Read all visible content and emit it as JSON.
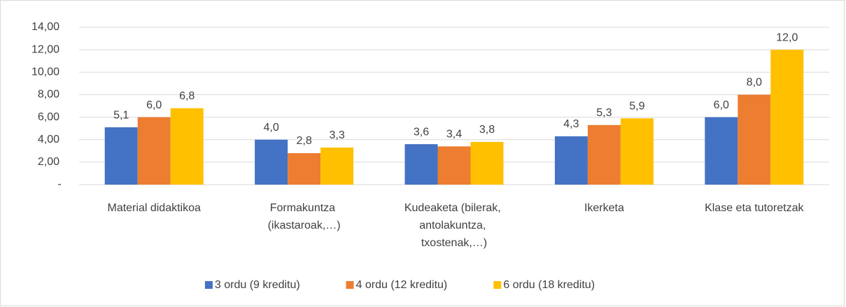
{
  "chart_data": {
    "type": "bar",
    "categories": [
      "Material didaktikoa",
      "Formakuntza (ikastaroak,…)",
      "Kudeaketa (bilerak, antolakuntza, txostenak,…)",
      "Ikerketa",
      "Klase eta tutoretzak"
    ],
    "series": [
      {
        "name": "3 ordu (9 kreditu)",
        "color": "#4472c4",
        "values": [
          5.1,
          4.0,
          3.6,
          4.3,
          6.0
        ],
        "value_labels": [
          "5,1",
          "4,0",
          "3,6",
          "4,3",
          "6,0"
        ]
      },
      {
        "name": "4 ordu (12 kreditu)",
        "color": "#ed7d31",
        "values": [
          6.0,
          2.8,
          3.4,
          5.3,
          8.0
        ],
        "value_labels": [
          "6,0",
          "2,8",
          "3,4",
          "5,3",
          "8,0"
        ]
      },
      {
        "name": "6 ordu (18 kreditu)",
        "color": "#ffc000",
        "values": [
          6.8,
          3.3,
          3.8,
          5.9,
          12.0
        ],
        "value_labels": [
          "6,8",
          "3,3",
          "3,8",
          "5,9",
          "12,0"
        ]
      }
    ],
    "ylim": [
      0,
      14
    ],
    "yticks": [
      {
        "value": 0,
        "label": "-"
      },
      {
        "value": 2,
        "label": "2,00"
      },
      {
        "value": 4,
        "label": "4,00"
      },
      {
        "value": 6,
        "label": "6,00"
      },
      {
        "value": 8,
        "label": "8,00"
      },
      {
        "value": 10,
        "label": "10,00"
      },
      {
        "value": 12,
        "label": "12,00"
      },
      {
        "value": 14,
        "label": "14,00"
      }
    ],
    "grid": true,
    "legend": "bottom"
  }
}
